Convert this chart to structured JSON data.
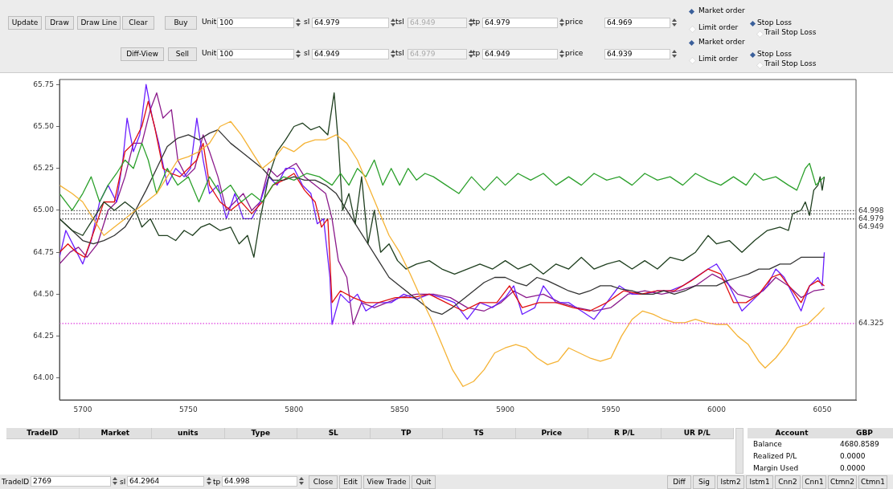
{
  "chart_data": {
    "type": "line",
    "xlim": [
      5689,
      6066
    ],
    "ylim": [
      63.87,
      65.78
    ],
    "xticks": [
      5700,
      5750,
      5800,
      5850,
      5900,
      5950,
      6000,
      6050
    ],
    "yticks": [
      {
        "value": 64.0,
        "label": "64.00"
      },
      {
        "value": 64.25,
        "label": "64.25"
      },
      {
        "value": 64.5,
        "label": "64.50"
      },
      {
        "value": 64.75,
        "label": "64.75"
      },
      {
        "value": 65.0,
        "label": "65.00"
      },
      {
        "value": 65.25,
        "label": "65.25"
      },
      {
        "value": 65.5,
        "label": "65.50"
      },
      {
        "value": 65.75,
        "label": "65.75"
      }
    ],
    "grid": false,
    "legend": false,
    "series": [
      {
        "color": "#f5b335",
        "x": [
          5689,
          5695,
          5700,
          5705,
          5710,
          5715,
          5720,
          5725,
          5730,
          5735,
          5740,
          5745,
          5750,
          5755,
          5760,
          5765,
          5770,
          5775,
          5780,
          5785,
          5790,
          5795,
          5800,
          5805,
          5810,
          5815,
          5820,
          5825,
          5830,
          5835,
          5840,
          5845,
          5850,
          5855,
          5860,
          5865,
          5870,
          5875,
          5880,
          5885,
          5890,
          5895,
          5900,
          5905,
          5910,
          5915,
          5920,
          5925,
          5930,
          5935,
          5940,
          5945,
          5950,
          5955,
          5960,
          5965,
          5970,
          5975,
          5980,
          5985,
          5990,
          5995,
          6000,
          6005,
          6010,
          6015,
          6020,
          6023,
          6028,
          6033,
          6038,
          6043,
          6048,
          6051
        ],
        "values": [
          65.15,
          65.1,
          65.05,
          64.95,
          64.85,
          64.9,
          64.95,
          65.0,
          65.05,
          65.1,
          65.2,
          65.3,
          65.32,
          65.35,
          65.4,
          65.5,
          65.53,
          65.45,
          65.35,
          65.25,
          65.3,
          65.38,
          65.35,
          65.4,
          65.42,
          65.42,
          65.45,
          65.4,
          65.3,
          65.15,
          65.0,
          64.85,
          64.75,
          64.62,
          64.48,
          64.35,
          64.2,
          64.05,
          63.95,
          63.98,
          64.05,
          64.15,
          64.18,
          64.2,
          64.18,
          64.12,
          64.08,
          64.1,
          64.18,
          64.15,
          64.12,
          64.1,
          64.12,
          64.25,
          64.35,
          64.4,
          64.38,
          64.35,
          64.33,
          64.33,
          64.35,
          64.33,
          64.32,
          64.32,
          64.25,
          64.2,
          64.1,
          64.06,
          64.12,
          64.2,
          64.3,
          64.32,
          64.38,
          64.42
        ]
      },
      {
        "color": "#2ca02c",
        "x": [
          5689,
          5695,
          5700,
          5704,
          5708,
          5712,
          5716,
          5720,
          5724,
          5728,
          5731,
          5735,
          5740,
          5745,
          5750,
          5755,
          5760,
          5765,
          5770,
          5775,
          5780,
          5785,
          5790,
          5795,
          5800,
          5806,
          5812,
          5818,
          5822,
          5826,
          5830,
          5834,
          5838,
          5842,
          5846,
          5850,
          5854,
          5858,
          5862,
          5866,
          5872,
          5878,
          5884,
          5890,
          5896,
          5900,
          5906,
          5912,
          5918,
          5924,
          5930,
          5936,
          5942,
          5948,
          5954,
          5960,
          5966,
          5972,
          5978,
          5984,
          5990,
          5996,
          6002,
          6008,
          6014,
          6018,
          6022,
          6028,
          6034,
          6038,
          6042,
          6044,
          6047,
          6051
        ],
        "values": [
          65.1,
          65.0,
          65.1,
          65.2,
          65.05,
          65.15,
          65.22,
          65.3,
          65.25,
          65.4,
          65.3,
          65.1,
          65.25,
          65.15,
          65.2,
          65.05,
          65.2,
          65.1,
          65.15,
          65.05,
          65.1,
          65.05,
          65.15,
          65.2,
          65.18,
          65.22,
          65.2,
          65.15,
          65.22,
          65.15,
          65.25,
          65.2,
          65.3,
          65.15,
          65.25,
          65.15,
          65.25,
          65.18,
          65.22,
          65.2,
          65.15,
          65.1,
          65.2,
          65.12,
          65.2,
          65.15,
          65.22,
          65.18,
          65.22,
          65.15,
          65.2,
          65.15,
          65.22,
          65.18,
          65.2,
          65.15,
          65.22,
          65.18,
          65.2,
          65.15,
          65.22,
          65.18,
          65.15,
          65.2,
          65.15,
          65.22,
          65.18,
          65.2,
          65.15,
          65.12,
          65.25,
          65.28,
          65.15,
          65.2
        ]
      },
      {
        "color": "#1f3f1f",
        "x": [
          5689,
          5695,
          5700,
          5705,
          5710,
          5715,
          5720,
          5725,
          5728,
          5732,
          5736,
          5740,
          5744,
          5748,
          5752,
          5756,
          5760,
          5765,
          5770,
          5774,
          5778,
          5781,
          5784,
          5788,
          5792,
          5796,
          5800,
          5804,
          5808,
          5812,
          5816,
          5819,
          5821,
          5823,
          5826,
          5829,
          5832,
          5835,
          5838,
          5841,
          5845,
          5849,
          5853,
          5858,
          5864,
          5870,
          5876,
          5882,
          5888,
          5894,
          5900,
          5906,
          5912,
          5918,
          5924,
          5930,
          5936,
          5942,
          5948,
          5954,
          5960,
          5966,
          5972,
          5978,
          5984,
          5990,
          5996,
          6000,
          6006,
          6012,
          6018,
          6024,
          6030,
          6034,
          6036,
          6040,
          6042,
          6044,
          6046,
          6048,
          6049,
          6050,
          6051
        ],
        "values": [
          64.95,
          64.88,
          64.85,
          64.95,
          65.05,
          65.0,
          65.05,
          65.0,
          64.9,
          64.95,
          64.85,
          64.85,
          64.82,
          64.88,
          64.85,
          64.9,
          64.92,
          64.88,
          64.9,
          64.8,
          64.85,
          64.72,
          64.95,
          65.2,
          65.35,
          65.42,
          65.5,
          65.52,
          65.48,
          65.5,
          65.45,
          65.7,
          65.4,
          65.0,
          65.1,
          64.92,
          65.2,
          64.8,
          65.0,
          64.75,
          64.8,
          64.7,
          64.65,
          64.68,
          64.7,
          64.65,
          64.62,
          64.65,
          64.68,
          64.65,
          64.7,
          64.65,
          64.68,
          64.62,
          64.68,
          64.65,
          64.72,
          64.65,
          64.68,
          64.7,
          64.65,
          64.7,
          64.65,
          64.72,
          64.7,
          64.75,
          64.85,
          64.8,
          64.82,
          64.75,
          64.82,
          64.88,
          64.9,
          64.88,
          64.98,
          65.0,
          65.05,
          64.97,
          65.12,
          65.15,
          65.2,
          65.12,
          65.2
        ]
      },
      {
        "color": "#333333",
        "x": [
          5689,
          5695,
          5700,
          5705,
          5710,
          5715,
          5720,
          5725,
          5730,
          5735,
          5740,
          5745,
          5750,
          5755,
          5760,
          5764,
          5770,
          5775,
          5780,
          5785,
          5790,
          5795,
          5800,
          5805,
          5810,
          5815,
          5820,
          5825,
          5830,
          5835,
          5840,
          5845,
          5850,
          5855,
          5860,
          5865,
          5870,
          5875,
          5880,
          5885,
          5890,
          5895,
          5900,
          5905,
          5910,
          5915,
          5920,
          5925,
          5930,
          5935,
          5940,
          5945,
          5950,
          5955,
          5960,
          5965,
          5970,
          5975,
          5980,
          5985,
          5990,
          5995,
          6000,
          6005,
          6010,
          6015,
          6020,
          6025,
          6030,
          6035,
          6040,
          6045,
          6051
        ],
        "values": [
          64.95,
          64.88,
          64.82,
          64.8,
          64.82,
          64.85,
          64.9,
          65.0,
          65.12,
          65.25,
          65.38,
          65.43,
          65.45,
          65.42,
          65.46,
          65.48,
          65.4,
          65.35,
          65.3,
          65.25,
          65.18,
          65.18,
          65.2,
          65.18,
          65.18,
          65.15,
          65.1,
          65.0,
          64.9,
          64.8,
          64.7,
          64.6,
          64.55,
          64.5,
          64.45,
          64.4,
          64.38,
          64.42,
          64.47,
          64.52,
          64.57,
          64.6,
          64.6,
          64.57,
          64.55,
          64.6,
          64.58,
          64.55,
          64.52,
          64.5,
          64.52,
          64.55,
          64.55,
          64.53,
          64.52,
          64.5,
          64.5,
          64.52,
          64.5,
          64.52,
          64.55,
          64.55,
          64.55,
          64.58,
          64.6,
          64.62,
          64.65,
          64.65,
          64.68,
          64.68,
          64.72,
          64.72,
          64.72
        ]
      },
      {
        "color": "#e01010",
        "x": [
          5689,
          5693,
          5697,
          5701,
          5706,
          5710,
          5715,
          5720,
          5724,
          5728,
          5731,
          5734,
          5738,
          5742,
          5746,
          5750,
          5754,
          5757,
          5760,
          5765,
          5770,
          5775,
          5780,
          5785,
          5790,
          5795,
          5800,
          5805,
          5810,
          5813,
          5816,
          5818,
          5822,
          5828,
          5834,
          5840,
          5848,
          5856,
          5864,
          5872,
          5880,
          5888,
          5896,
          5902,
          5908,
          5916,
          5924,
          5932,
          5940,
          5948,
          5956,
          5964,
          5972,
          5980,
          5988,
          5996,
          6002,
          6008,
          6014,
          6020,
          6026,
          6030,
          6036,
          6040,
          6044,
          6048,
          6051
        ],
        "values": [
          64.75,
          64.8,
          64.75,
          64.72,
          64.9,
          65.05,
          65.05,
          65.35,
          65.4,
          65.5,
          65.65,
          65.5,
          65.25,
          65.22,
          65.2,
          65.25,
          65.3,
          65.4,
          65.15,
          65.05,
          65.0,
          65.05,
          64.98,
          65.05,
          65.15,
          65.18,
          65.22,
          65.12,
          65.05,
          64.9,
          64.95,
          64.45,
          64.52,
          64.48,
          64.45,
          64.45,
          64.48,
          64.48,
          64.5,
          64.45,
          64.4,
          64.45,
          64.45,
          64.55,
          64.42,
          64.45,
          64.45,
          64.42,
          64.4,
          64.45,
          64.52,
          64.5,
          64.52,
          64.52,
          64.58,
          64.65,
          64.62,
          64.45,
          64.45,
          64.5,
          64.6,
          64.62,
          64.52,
          64.45,
          64.55,
          64.58,
          64.55
        ]
      },
      {
        "color": "#6a1fff",
        "x": [
          5689,
          5692,
          5696,
          5700,
          5704,
          5708,
          5712,
          5716,
          5719,
          5721,
          5724,
          5727,
          5730,
          5733,
          5736,
          5740,
          5744,
          5748,
          5751,
          5754,
          5757,
          5760,
          5764,
          5768,
          5772,
          5776,
          5780,
          5784,
          5788,
          5792,
          5796,
          5800,
          5804,
          5808,
          5811,
          5814,
          5817,
          5818,
          5822,
          5826,
          5830,
          5834,
          5840,
          5846,
          5852,
          5858,
          5864,
          5870,
          5876,
          5882,
          5888,
          5894,
          5900,
          5904,
          5908,
          5914,
          5918,
          5924,
          5930,
          5936,
          5942,
          5948,
          5954,
          5960,
          5966,
          5972,
          5978,
          5984,
          5990,
          5996,
          6000,
          6004,
          6008,
          6012,
          6016,
          6020,
          6024,
          6028,
          6032,
          6036,
          6040,
          6044,
          6048,
          6050,
          6051
        ],
        "values": [
          64.72,
          64.88,
          64.78,
          64.68,
          64.82,
          65.05,
          65.15,
          65.05,
          65.3,
          65.55,
          65.35,
          65.45,
          65.75,
          65.55,
          65.4,
          65.15,
          65.25,
          65.2,
          65.25,
          65.55,
          65.3,
          65.1,
          65.15,
          64.95,
          65.1,
          64.95,
          64.95,
          65.05,
          65.2,
          65.15,
          65.25,
          65.25,
          65.15,
          65.1,
          64.92,
          64.95,
          64.6,
          64.32,
          64.5,
          64.45,
          64.5,
          64.4,
          64.45,
          64.45,
          64.5,
          64.47,
          64.5,
          64.48,
          64.45,
          64.35,
          64.45,
          64.42,
          64.48,
          64.55,
          64.38,
          64.42,
          64.55,
          64.45,
          64.45,
          64.4,
          64.35,
          64.45,
          64.55,
          64.5,
          64.5,
          64.52,
          64.52,
          64.55,
          64.6,
          64.65,
          64.68,
          64.6,
          64.5,
          64.4,
          64.45,
          64.5,
          64.55,
          64.65,
          64.6,
          64.5,
          64.4,
          64.55,
          64.6,
          64.55,
          64.75
        ]
      },
      {
        "color": "#8b1a8b",
        "x": [
          5689,
          5694,
          5698,
          5702,
          5707,
          5712,
          5716,
          5720,
          5724,
          5728,
          5732,
          5735,
          5738,
          5742,
          5745,
          5749,
          5753,
          5757,
          5760,
          5764,
          5768,
          5772,
          5776,
          5780,
          5784,
          5788,
          5792,
          5797,
          5801,
          5805,
          5810,
          5815,
          5818,
          5821,
          5825,
          5828,
          5832,
          5838,
          5844,
          5850,
          5858,
          5866,
          5874,
          5882,
          5890,
          5898,
          5904,
          5910,
          5918,
          5926,
          5934,
          5942,
          5950,
          5958,
          5966,
          5974,
          5982,
          5990,
          5998,
          6004,
          6010,
          6016,
          6022,
          6028,
          6034,
          6040,
          6046,
          6051
        ],
        "values": [
          64.68,
          64.75,
          64.78,
          64.72,
          64.8,
          65.0,
          65.05,
          65.2,
          65.4,
          65.4,
          65.6,
          65.7,
          65.55,
          65.6,
          65.3,
          65.2,
          65.25,
          65.45,
          65.35,
          65.2,
          65.0,
          65.05,
          65.1,
          65.0,
          65.05,
          65.25,
          65.2,
          65.25,
          65.28,
          65.2,
          65.15,
          65.1,
          64.95,
          64.7,
          64.6,
          64.32,
          64.45,
          64.42,
          64.45,
          64.48,
          64.5,
          64.5,
          64.48,
          64.42,
          64.4,
          64.45,
          64.52,
          64.48,
          64.5,
          64.45,
          64.42,
          64.4,
          64.42,
          64.5,
          64.52,
          64.5,
          64.52,
          64.55,
          64.62,
          64.58,
          64.5,
          64.48,
          64.52,
          64.6,
          64.55,
          64.48,
          64.52,
          64.53
        ]
      }
    ],
    "ref_lines": [
      {
        "axis": "y",
        "value": 64.998,
        "label": "64.998",
        "color": "#555555",
        "line_style": "dotted"
      },
      {
        "axis": "y",
        "value": 64.979,
        "label": "64.979",
        "color": "#555555",
        "line_style": "dotted"
      },
      {
        "axis": "y",
        "value": 64.949,
        "label": "64.949",
        "color": "#333333",
        "line_style": "dotted"
      },
      {
        "axis": "y",
        "value": 64.325,
        "label": "64.325",
        "color": "#e040e0",
        "line_style": "dotted"
      }
    ],
    "annotations": [
      "Update",
      "Draw",
      "Draw Line",
      "Clear",
      "Buy",
      "Unit",
      "100",
      "sl",
      "64.979",
      "tsl",
      "64.949",
      "tp",
      "64.979",
      "price",
      "64.969",
      "Market order",
      "Limit order",
      "Stop Loss",
      "Trail Stop Loss",
      "Diff-View",
      "Sell",
      "Unit",
      "100",
      "sl",
      "64.949",
      "tsl",
      "64.979",
      "tp",
      "64.949",
      "price",
      "64.939",
      "Market order",
      "Limit order",
      "Stop Loss",
      "Trail Stop Loss",
      "TradeID",
      "Market",
      "units",
      "Type",
      "SL",
      "TP",
      "TS",
      "Price",
      "R P/L",
      "UR P/L",
      "Account",
      "GBP",
      "Balance",
      "4680.8589",
      "Realized P/L",
      "0.0000",
      "Margin Used",
      "0.0000",
      "TradeID",
      "2769",
      "sl",
      "64.2964",
      "tp",
      "64.998",
      "Close",
      "Edit",
      "View Trade",
      "Quit",
      "Diff",
      "Sig",
      "lstm2",
      "lstm1",
      "Cnn2",
      "Cnn1",
      "Ctmn2",
      "Ctmn1"
    ]
  }
}
